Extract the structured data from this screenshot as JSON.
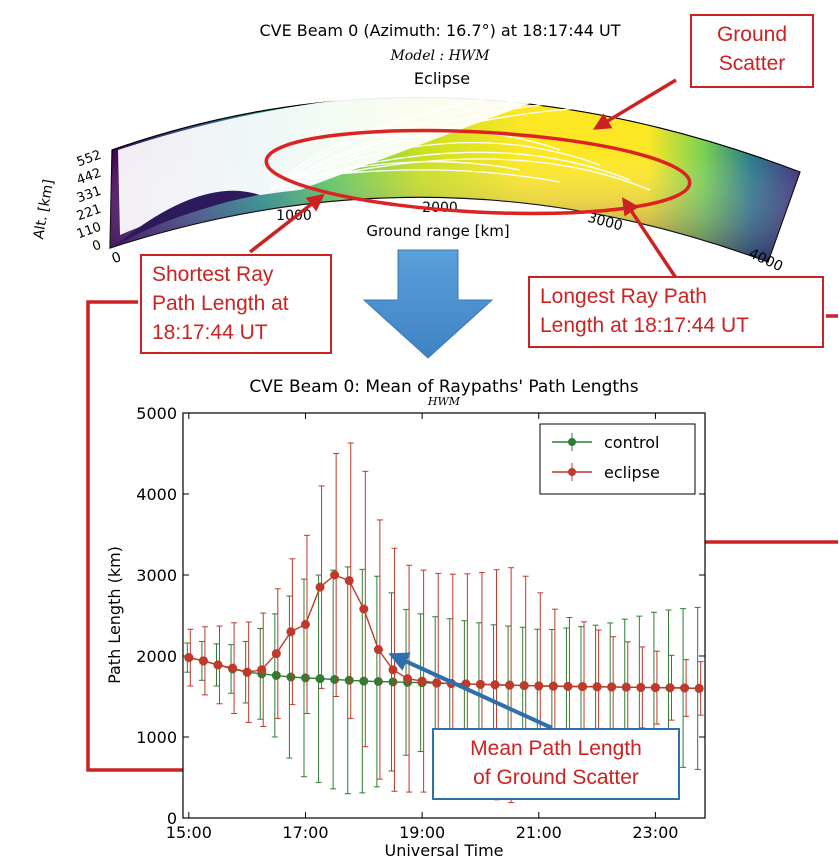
{
  "top_panel": {
    "title": "CVE Beam 0 (Azimuth: 16.7°) at 18:17:44 UT",
    "model": "Model : HWM",
    "subtitle": "Eclipse",
    "ylabel": "Alt. [km]",
    "y_ticks": [
      "552",
      "442",
      "331",
      "221",
      "110",
      "0"
    ],
    "xlabel": "Ground range [km]",
    "x_ticks": [
      "0",
      "1000",
      "2000",
      "3000",
      "4000"
    ]
  },
  "callouts": {
    "ground_scatter": "Ground\nScatter",
    "shortest": "Shortest Ray\nPath Length at\n18:17:44 UT",
    "longest": "Longest Ray Path\nLength at 18:17:44 UT",
    "mean": "Mean Path Length\nof Ground Scatter"
  },
  "colors": {
    "annotation_red": "#cc2222",
    "annotation_blue": "#2e6fad",
    "big_arrow": "#4a8fd0",
    "control": "#2f7d32",
    "eclipse": "#c0392b",
    "density_low": "#440154",
    "density_mid": "#21918c",
    "density_high": "#fde725"
  },
  "chart_data": {
    "type": "line",
    "title": "CVE Beam 0: Mean of Raypaths' Path Lengths",
    "subtitle": "HWM",
    "xlabel": "Universal Time",
    "ylabel": "Path Length (km)",
    "xlim": [
      14.9,
      23.85
    ],
    "ylim": [
      0,
      5000
    ],
    "x_ticks": [
      "15:00",
      "17:00",
      "19:00",
      "21:00",
      "23:00"
    ],
    "x_tick_values": [
      15,
      17,
      19,
      21,
      23
    ],
    "y_ticks": [
      0,
      1000,
      2000,
      3000,
      4000,
      5000
    ],
    "legend_position": "top-right",
    "x": [
      15.0,
      15.25,
      15.5,
      15.75,
      16.0,
      16.25,
      16.5,
      16.75,
      17.0,
      17.25,
      17.5,
      17.75,
      18.0,
      18.25,
      18.5,
      18.75,
      19.0,
      19.25,
      19.5,
      19.75,
      20.0,
      20.25,
      20.5,
      20.75,
      21.0,
      21.25,
      21.5,
      21.75,
      22.0,
      22.25,
      22.5,
      22.75,
      23.0,
      23.25,
      23.5,
      23.75
    ],
    "series": [
      {
        "name": "control",
        "values": [
          1980,
          1940,
          1890,
          1840,
          1800,
          1780,
          1760,
          1740,
          1730,
          1720,
          1710,
          1700,
          1690,
          1685,
          1680,
          1675,
          1670,
          1665,
          1660,
          1655,
          1650,
          1645,
          1640,
          1635,
          1630,
          1628,
          1625,
          1622,
          1620,
          1618,
          1615,
          1612,
          1610,
          1608,
          1605,
          1600
        ],
        "err": [
          180,
          240,
          260,
          300,
          380,
          560,
          760,
          1000,
          1220,
          1280,
          1350,
          1400,
          1380,
          1300,
          1100,
          900,
          850,
          820,
          800,
          780,
          760,
          740,
          730,
          720,
          700,
          700,
          720,
          740,
          760,
          790,
          840,
          880,
          930,
          960,
          980,
          1000
        ]
      },
      {
        "name": "eclipse",
        "values": [
          1980,
          1940,
          1890,
          1850,
          1800,
          1830,
          2030,
          2300,
          2390,
          2850,
          3000,
          2930,
          2580,
          2080,
          1830,
          1720,
          1690,
          1670,
          1660,
          1655,
          1650,
          1645,
          1640,
          1635,
          1630,
          1628,
          1625,
          1622,
          1620,
          1618,
          1615,
          1612,
          1610,
          1608,
          1605,
          1600
        ],
        "err": [
          350,
          420,
          480,
          560,
          620,
          700,
          800,
          900,
          1100,
          1250,
          1500,
          1700,
          1700,
          1600,
          1500,
          1400,
          1370,
          1350,
          1350,
          1360,
          1380,
          1420,
          1450,
          1350,
          1150,
          950,
          850,
          800,
          700,
          620,
          560,
          500,
          450,
          400,
          350,
          330
        ]
      }
    ]
  }
}
